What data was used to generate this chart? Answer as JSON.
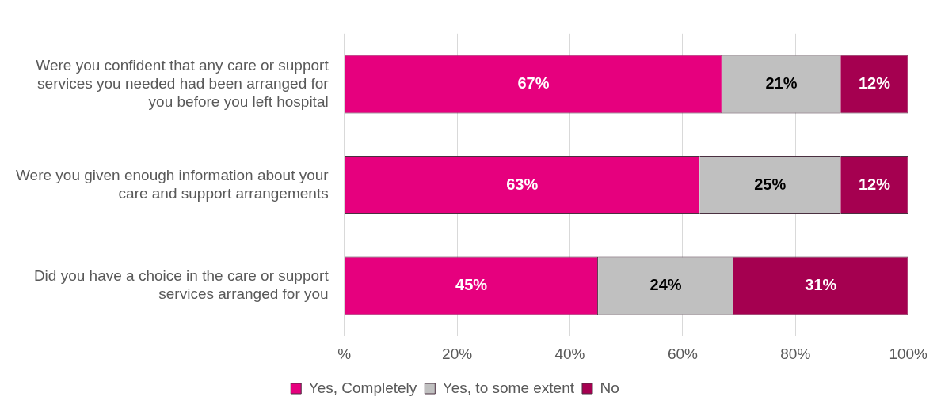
{
  "chart_data": {
    "type": "bar",
    "orientation": "horizontal",
    "stacked": true,
    "categories": [
      "Were you confident that any care or support services you needed had been arranged for you before you left hospital",
      "Were you given enough information about your care and support arrangements",
      "Did you have a choice in the care or support services arranged for you"
    ],
    "series": [
      {
        "name": "Yes, Completely",
        "color": "#e6007e",
        "values": [
          67,
          63,
          45
        ],
        "value_labels": [
          "67%",
          "63%",
          "45%"
        ]
      },
      {
        "name": "Yes, to some extent",
        "color": "#c0c0c0",
        "values": [
          21,
          25,
          24
        ],
        "value_labels": [
          "21%",
          "25%",
          "24%"
        ]
      },
      {
        "name": "No",
        "color": "#a50050",
        "values": [
          12,
          12,
          31
        ],
        "value_labels": [
          "12%",
          "12%",
          "31%"
        ]
      }
    ],
    "xlim": [
      0,
      100
    ],
    "xticks": [
      {
        "value": 0,
        "label": "%"
      },
      {
        "value": 20,
        "label": "20%"
      },
      {
        "value": 40,
        "label": "40%"
      },
      {
        "value": 60,
        "label": "60%"
      },
      {
        "value": 80,
        "label": "80%"
      },
      {
        "value": 100,
        "label": "100%"
      }
    ],
    "grid": "x",
    "legend": "bottom"
  }
}
